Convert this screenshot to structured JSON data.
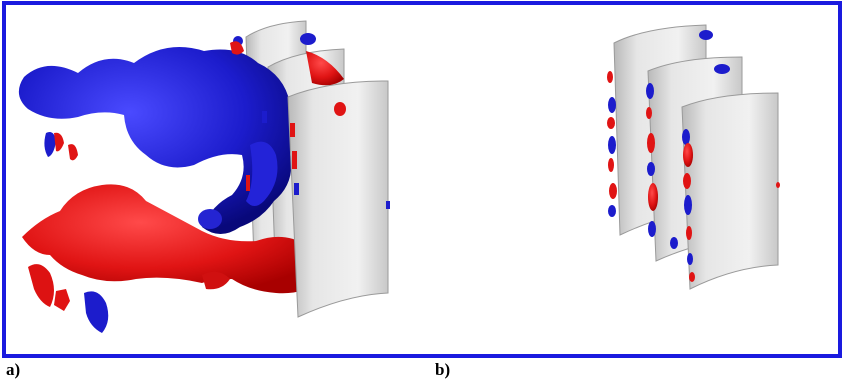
{
  "panels": [
    {
      "label": "a)"
    },
    {
      "label": "b)"
    }
  ],
  "colors": {
    "frame_border": "#1a1adf",
    "positive_isosurface": "#e01414",
    "negative_isosurface": "#1c1ccc",
    "blade_surface": "#dcdcdc",
    "label_text": "#000000"
  },
  "icons": {
    "panel_a": "vortex-isosurface-large-structures",
    "panel_b": "vortex-isosurface-small-structures"
  }
}
